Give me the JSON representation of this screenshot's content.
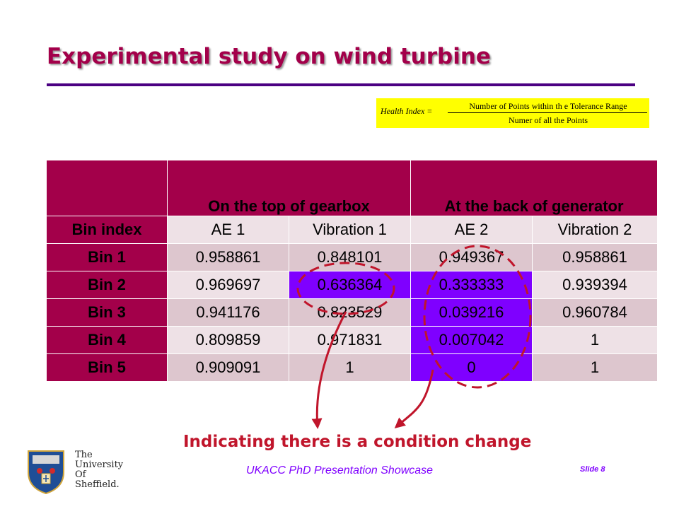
{
  "slide": {
    "title": "Experimental study on wind turbine",
    "formula": {
      "lhs": "Health Index =",
      "numerator": "Number of Points within th e Tolerance Range",
      "denominator": "Numer of all the Points"
    },
    "table": {
      "group_headers": [
        "",
        "On the top of gearbox",
        "At the back of generator"
      ],
      "columns": [
        "Bin index",
        "AE 1",
        "Vibration 1",
        "AE 2",
        "Vibration 2"
      ],
      "rows": [
        [
          "Bin 1",
          "0.958861",
          "0.848101",
          "0.949367",
          "0.958861"
        ],
        [
          "Bin 2",
          "0.969697",
          "0.636364",
          "0.333333",
          "0.939394"
        ],
        [
          "Bin 3",
          "0.941176",
          "0.823529",
          "0.039216",
          "0.960784"
        ],
        [
          "Bin 4",
          "0.809859",
          "0.971831",
          "0.007042",
          "1"
        ],
        [
          "Bin 5",
          "0.909091",
          "1",
          "0",
          "1"
        ]
      ]
    },
    "annotation": "Indicating there is a condition change",
    "footer": "UKACC PhD Presentation Showcase",
    "slide_number": "Slide 8",
    "logo_text": [
      "The",
      "University",
      "Of",
      "Sheffield."
    ],
    "colors": {
      "title": "#a3004a",
      "rule": "#4b0082",
      "header_fill": "#a3004a",
      "highlight_fill": "#7f00ff",
      "formula_fill": "#ffff00",
      "annotation": "#c0152b",
      "footer": "#7f00ff"
    }
  }
}
